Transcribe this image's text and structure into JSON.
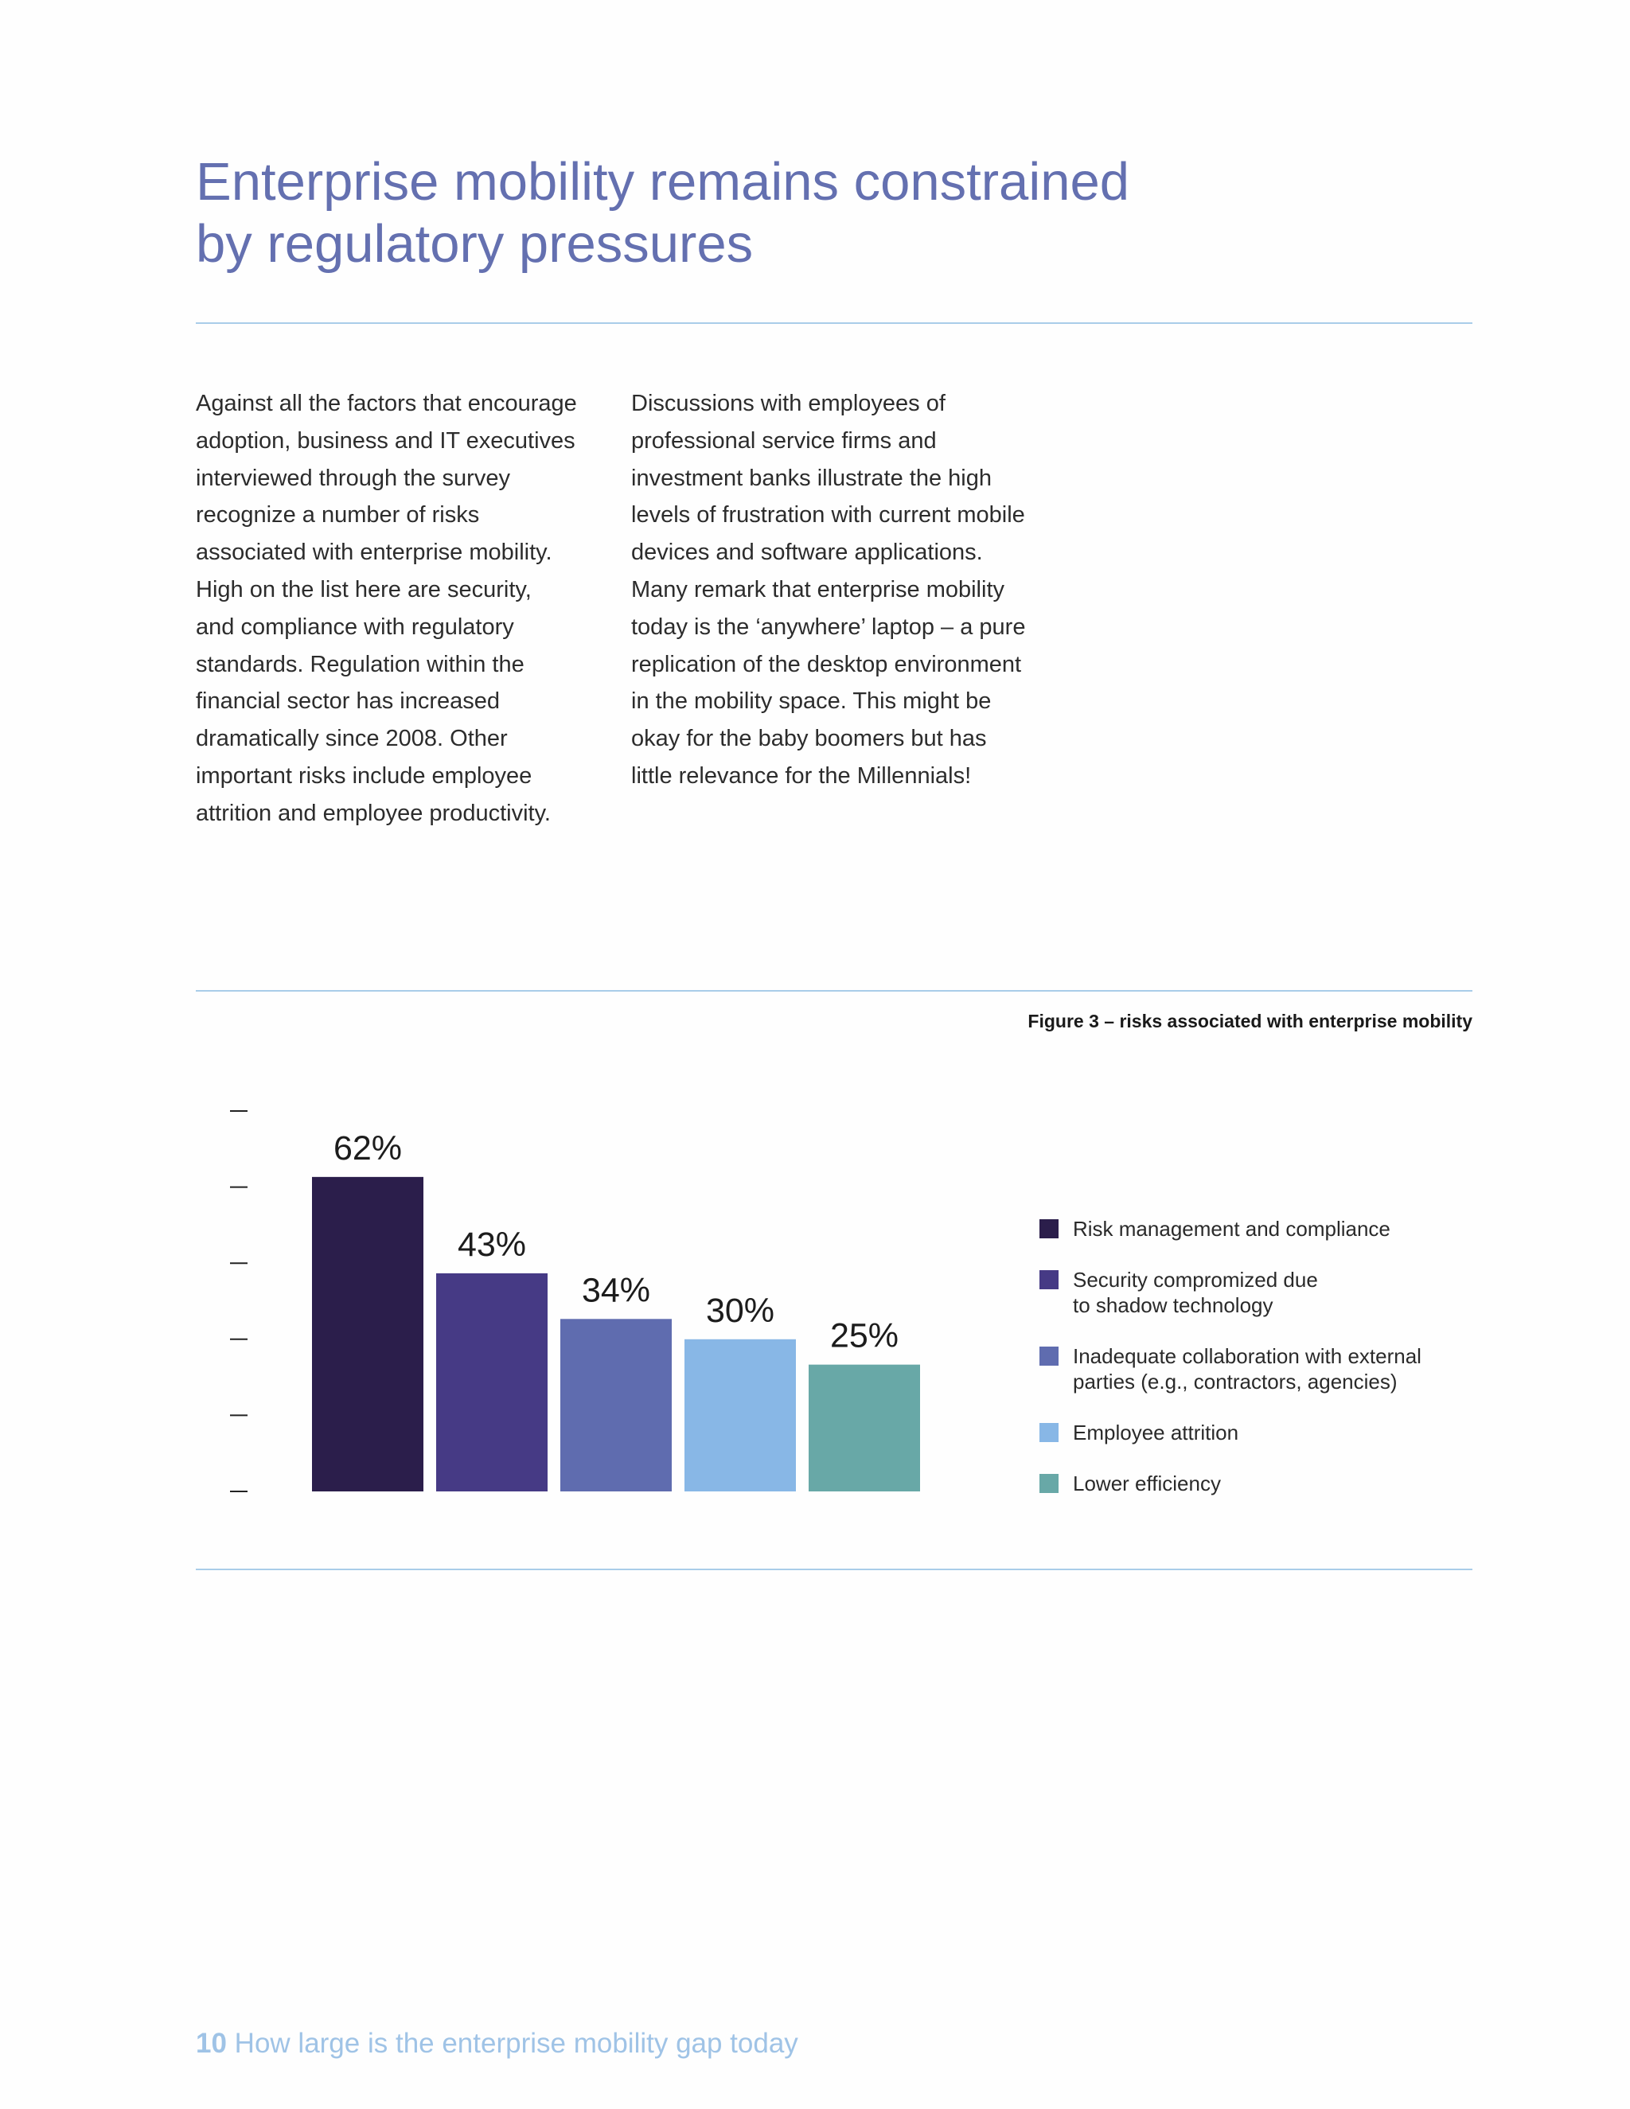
{
  "heading": {
    "line1": "Enterprise mobility remains constrained",
    "line2": "by regulatory pressures"
  },
  "body": {
    "left_lines": [
      "Against all the factors that encourage",
      "adoption, business and IT executives",
      "interviewed through the survey",
      "recognize a number of risks",
      "associated with enterprise mobility.",
      "High on the list here are security,",
      "and compliance with regulatory",
      "standards. Regulation within the",
      "financial sector has increased",
      "dramatically since 2008. Other",
      "important risks include employee",
      "attrition and employee productivity."
    ],
    "right_lines": [
      "Discussions with employees of",
      "professional service firms and",
      "investment banks illustrate the high",
      "levels of frustration with current mobile",
      "devices and software applications.",
      "Many remark that enterprise mobility",
      "today is the ‘anywhere’ laptop – a pure",
      "replication of the desktop environment",
      "in the mobility space. This might be",
      "okay for the baby boomers but has",
      "little relevance for the Millennials!"
    ]
  },
  "figure": {
    "caption": "Figure 3 – risks associated with enterprise mobility"
  },
  "chart_data": {
    "type": "bar",
    "categories": [
      "Risk management and compliance",
      "Security compromized due to shadow technology",
      "Inadequate collaboration with external parties (e.g., contractors, agencies)",
      "Employee attrition",
      "Lower efficiency"
    ],
    "values": [
      62,
      43,
      34,
      30,
      25
    ],
    "value_labels": [
      "62%",
      "43%",
      "34%",
      "30%",
      "25%"
    ],
    "colors": [
      "#2b1e4b",
      "#463a85",
      "#5f6caf",
      "#88b7e6",
      "#68a8a7"
    ],
    "ylim": [
      0,
      75
    ],
    "y_tick_values": [
      0,
      15,
      30,
      45,
      60,
      75
    ],
    "grid": false,
    "legend_position": "right",
    "legend": [
      {
        "line1": "Risk management and compliance",
        "line2": ""
      },
      {
        "line1": "Security compromized due",
        "line2": "to shadow technology"
      },
      {
        "line1": "Inadequate collaboration with external",
        "line2": "parties (e.g., contractors, agencies)"
      },
      {
        "line1": "Employee attrition",
        "line2": ""
      },
      {
        "line1": "Lower efficiency",
        "line2": ""
      }
    ]
  },
  "footer": {
    "page_number": "10",
    "text": "How large is the enterprise mobility gap today"
  }
}
